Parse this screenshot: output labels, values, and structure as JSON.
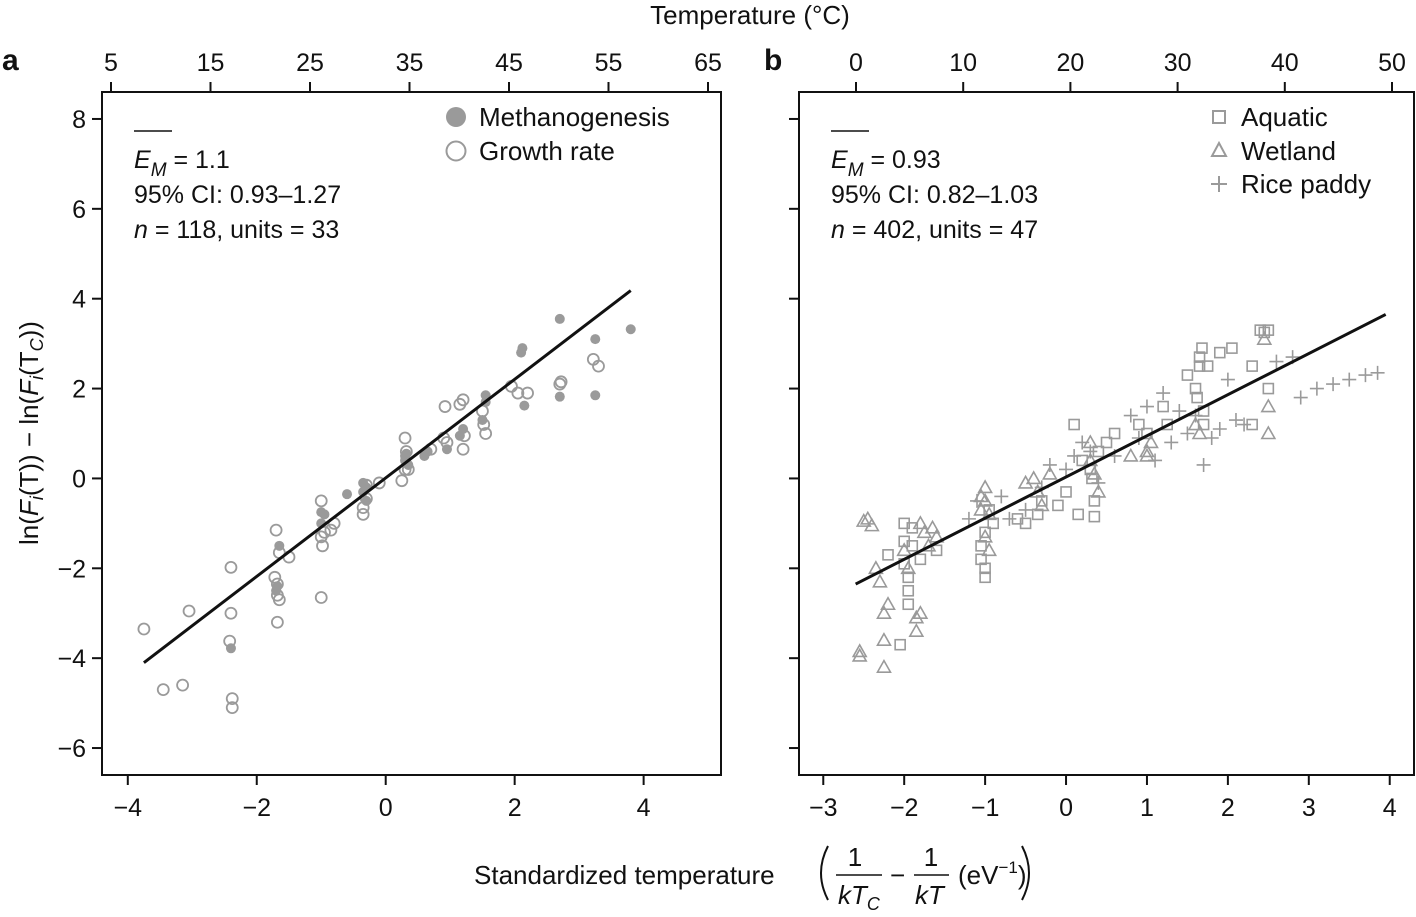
{
  "figure": {
    "top_axis_label": "Temperature (°C)",
    "y_axis": {
      "pre": "ln(",
      "F1": "F",
      "i1": "i",
      "T1": "(T)) − ln(",
      "F2": "F",
      "i2": "i",
      "T2": "(T",
      "c": "C",
      "close": "))"
    },
    "x_axis": {
      "prefix": "Standardized temperature",
      "one": "1",
      "kT": "kT",
      "C": "C",
      "minus": "−",
      "one2": "1",
      "kT2": "kT",
      "unit": "(eV",
      "exp": "−1",
      "unit_close": ")"
    }
  },
  "colors": {
    "grey": "#9a9a9a",
    "line": "#111111"
  },
  "chart_data": [
    {
      "type": "scatter",
      "panel_label": "a",
      "xlim": [
        -4.4,
        5.2
      ],
      "ylim": [
        -6.6,
        8.6
      ],
      "x_ticks": [
        -4,
        -2,
        0,
        2,
        4
      ],
      "x_tick_labels": [
        "−4",
        "−2",
        "0",
        "2",
        "4"
      ],
      "y_ticks": [
        -6,
        -4,
        -2,
        0,
        2,
        4,
        6,
        8
      ],
      "y_tick_labels": [
        "−6",
        "−4",
        "−2",
        "0",
        "2",
        "4",
        "6",
        "8"
      ],
      "top_ticks": [
        5,
        15,
        25,
        35,
        45,
        55,
        65
      ],
      "top_tick_labels": [
        "5",
        "15",
        "25",
        "35",
        "45",
        "55",
        "65"
      ],
      "stats": {
        "em_label": "E",
        "em_sub": "M",
        "em_value": " = 1.1",
        "ci": "95% CI: 0.93–1.27",
        "n_label": "n",
        "n_rest": " = 118, units = 33"
      },
      "fit": {
        "x": [
          -3.75,
          3.8
        ],
        "y": [
          -4.1,
          4.18
        ]
      },
      "legend": [
        "Methanogenesis",
        "Growth rate"
      ],
      "series": [
        {
          "name": "Methanogenesis",
          "marker": "filled-circle",
          "points": [
            [
              -2.4,
              -3.78
            ],
            [
              -1.7,
              -2.5
            ],
            [
              -1.68,
              -2.4
            ],
            [
              -1.65,
              -1.5
            ],
            [
              -1.0,
              -0.75
            ],
            [
              -1.0,
              -1.0
            ],
            [
              -0.95,
              -0.8
            ],
            [
              -0.6,
              -0.35
            ],
            [
              -0.35,
              -0.1
            ],
            [
              -0.35,
              -0.3
            ],
            [
              -0.3,
              -0.5
            ],
            [
              -0.3,
              -0.2
            ],
            [
              0.3,
              0.4
            ],
            [
              0.3,
              0.5
            ],
            [
              0.32,
              0.55
            ],
            [
              0.35,
              0.3
            ],
            [
              0.6,
              0.5
            ],
            [
              0.65,
              0.6
            ],
            [
              0.95,
              0.65
            ],
            [
              1.15,
              0.95
            ],
            [
              1.2,
              1.1
            ],
            [
              1.5,
              1.3
            ],
            [
              1.55,
              1.85
            ],
            [
              1.55,
              1.7
            ],
            [
              2.1,
              2.8
            ],
            [
              2.12,
              2.9
            ],
            [
              2.15,
              1.62
            ],
            [
              2.7,
              3.55
            ],
            [
              2.7,
              1.82
            ],
            [
              3.25,
              3.1
            ],
            [
              3.25,
              1.85
            ],
            [
              3.8,
              3.32
            ]
          ]
        },
        {
          "name": "Growth rate",
          "marker": "open-circle",
          "points": [
            [
              -3.75,
              -3.35
            ],
            [
              -3.45,
              -4.7
            ],
            [
              -3.15,
              -4.6
            ],
            [
              -3.05,
              -2.95
            ],
            [
              -2.4,
              -1.98
            ],
            [
              -2.4,
              -3.0
            ],
            [
              -2.42,
              -3.62
            ],
            [
              -2.38,
              -4.9
            ],
            [
              -2.38,
              -5.1
            ],
            [
              -1.7,
              -1.15
            ],
            [
              -1.72,
              -2.2
            ],
            [
              -1.68,
              -2.35
            ],
            [
              -1.68,
              -2.6
            ],
            [
              -1.65,
              -2.7
            ],
            [
              -1.68,
              -3.2
            ],
            [
              -1.65,
              -1.65
            ],
            [
              -1.5,
              -1.75
            ],
            [
              -1.0,
              -0.5
            ],
            [
              -1.0,
              -1.3
            ],
            [
              -0.98,
              -1.5
            ],
            [
              -0.95,
              -1.2
            ],
            [
              -1.0,
              -2.65
            ],
            [
              -0.85,
              -1.15
            ],
            [
              -0.8,
              -1.0
            ],
            [
              -0.35,
              -0.65
            ],
            [
              -0.35,
              -0.8
            ],
            [
              -0.3,
              -0.45
            ],
            [
              -0.3,
              -0.15
            ],
            [
              -0.1,
              -0.1
            ],
            [
              0.25,
              -0.05
            ],
            [
              0.3,
              0.2
            ],
            [
              0.3,
              0.9
            ],
            [
              0.32,
              0.6
            ],
            [
              0.35,
              0.2
            ],
            [
              0.7,
              0.65
            ],
            [
              0.9,
              0.9
            ],
            [
              0.92,
              1.6
            ],
            [
              0.95,
              0.8
            ],
            [
              1.15,
              1.65
            ],
            [
              1.2,
              1.75
            ],
            [
              1.2,
              0.65
            ],
            [
              1.22,
              0.95
            ],
            [
              1.5,
              1.5
            ],
            [
              1.52,
              1.2
            ],
            [
              1.55,
              1.0
            ],
            [
              1.95,
              2.05
            ],
            [
              2.05,
              1.9
            ],
            [
              2.2,
              1.9
            ],
            [
              2.7,
              2.1
            ],
            [
              2.72,
              2.15
            ],
            [
              3.22,
              2.65
            ],
            [
              3.3,
              2.5
            ]
          ]
        }
      ]
    },
    {
      "type": "scatter",
      "panel_label": "b",
      "xlim": [
        -3.3,
        4.3
      ],
      "ylim": [
        -6.6,
        8.6
      ],
      "x_ticks": [
        -3,
        -2,
        -1,
        0,
        1,
        2,
        3,
        4
      ],
      "x_tick_labels": [
        "−3",
        "−2",
        "−1",
        "0",
        "1",
        "2",
        "3",
        "4"
      ],
      "y_ticks": [
        -6,
        -4,
        -2,
        0,
        2,
        4,
        6,
        8
      ],
      "top_ticks": [
        0,
        10,
        20,
        30,
        40,
        50
      ],
      "top_tick_labels": [
        "0",
        "10",
        "20",
        "30",
        "40",
        "50"
      ],
      "stats": {
        "em_label": "E",
        "em_sub": "M",
        "em_value": " = 0.93",
        "ci": "95% CI: 0.82–1.03",
        "n_label": "n",
        "n_rest": " = 402, units = 47"
      },
      "fit": {
        "x": [
          -2.6,
          3.95
        ],
        "y": [
          -2.35,
          3.65
        ]
      },
      "legend": [
        "Aquatic",
        "Wetland",
        "Rice paddy"
      ],
      "series": [
        {
          "name": "Aquatic",
          "marker": "open-square",
          "points": [
            [
              -2.2,
              -1.7
            ],
            [
              -2.0,
              -1.0
            ],
            [
              -2.0,
              -1.4
            ],
            [
              -2.0,
              -1.9
            ],
            [
              -1.95,
              -2.2
            ],
            [
              -1.95,
              -2.5
            ],
            [
              -1.95,
              -2.8
            ],
            [
              -1.9,
              -1.1
            ],
            [
              -1.9,
              -1.5
            ],
            [
              -1.8,
              -1.8
            ],
            [
              -1.6,
              -1.6
            ],
            [
              -1.05,
              -1.5
            ],
            [
              -1.05,
              -1.8
            ],
            [
              -1.0,
              -2.2
            ],
            [
              -1.0,
              -2.0
            ],
            [
              -1.0,
              -1.2
            ],
            [
              -0.95,
              -0.7
            ],
            [
              -0.9,
              -1.0
            ],
            [
              -0.6,
              -0.9
            ],
            [
              -0.5,
              -1.0
            ],
            [
              -0.35,
              -0.8
            ],
            [
              -0.3,
              -0.5
            ],
            [
              -0.1,
              -0.6
            ],
            [
              0.0,
              -0.3
            ],
            [
              0.1,
              1.2
            ],
            [
              0.15,
              -0.8
            ],
            [
              0.2,
              0.4
            ],
            [
              0.3,
              0.2
            ],
            [
              0.32,
              0.0
            ],
            [
              0.35,
              -0.5
            ],
            [
              0.35,
              -0.85
            ],
            [
              0.4,
              0.6
            ],
            [
              0.5,
              0.8
            ],
            [
              0.6,
              1.0
            ],
            [
              0.9,
              1.2
            ],
            [
              1.0,
              1.0
            ],
            [
              1.2,
              1.6
            ],
            [
              1.25,
              1.2
            ],
            [
              1.5,
              2.3
            ],
            [
              1.6,
              2.0
            ],
            [
              1.62,
              1.8
            ],
            [
              1.65,
              2.5
            ],
            [
              1.65,
              2.7
            ],
            [
              1.68,
              2.9
            ],
            [
              1.7,
              1.5
            ],
            [
              1.7,
              1.2
            ],
            [
              1.75,
              2.5
            ],
            [
              1.9,
              2.8
            ],
            [
              2.05,
              2.9
            ],
            [
              2.3,
              2.5
            ],
            [
              2.3,
              1.2
            ],
            [
              2.4,
              3.3
            ],
            [
              2.45,
              3.25
            ],
            [
              2.5,
              3.3
            ],
            [
              2.5,
              2.0
            ],
            [
              -2.05,
              -3.7
            ]
          ]
        },
        {
          "name": "Wetland",
          "marker": "open-triangle",
          "points": [
            [
              -2.55,
              -3.85
            ],
            [
              -2.55,
              -3.95
            ],
            [
              -2.5,
              -0.95
            ],
            [
              -2.45,
              -0.9
            ],
            [
              -2.4,
              -1.05
            ],
            [
              -2.35,
              -2.0
            ],
            [
              -2.3,
              -2.3
            ],
            [
              -2.25,
              -3.0
            ],
            [
              -2.25,
              -3.6
            ],
            [
              -2.25,
              -4.2
            ],
            [
              -2.2,
              -2.8
            ],
            [
              -2.0,
              -1.6
            ],
            [
              -1.95,
              -2.0
            ],
            [
              -1.85,
              -3.1
            ],
            [
              -1.85,
              -3.4
            ],
            [
              -1.8,
              -3.0
            ],
            [
              -1.8,
              -1.0
            ],
            [
              -1.75,
              -1.2
            ],
            [
              -1.7,
              -1.5
            ],
            [
              -1.65,
              -1.1
            ],
            [
              -1.6,
              -1.3
            ],
            [
              -1.05,
              -0.4
            ],
            [
              -1.05,
              -0.7
            ],
            [
              -1.0,
              -0.2
            ],
            [
              -1.0,
              -0.5
            ],
            [
              -0.95,
              -0.8
            ],
            [
              -0.95,
              -1.6
            ],
            [
              -1.0,
              -1.3
            ],
            [
              -0.5,
              -0.1
            ],
            [
              -0.4,
              0.0
            ],
            [
              -0.35,
              -0.3
            ],
            [
              -0.3,
              -0.6
            ],
            [
              -0.2,
              0.1
            ],
            [
              0.3,
              0.8
            ],
            [
              0.3,
              0.4
            ],
            [
              0.35,
              0.1
            ],
            [
              0.4,
              -0.3
            ],
            [
              0.8,
              0.5
            ],
            [
              1.0,
              0.5
            ],
            [
              1.0,
              0.6
            ],
            [
              1.05,
              0.8
            ],
            [
              1.6,
              1.2
            ],
            [
              1.65,
              1.0
            ],
            [
              2.45,
              3.1
            ],
            [
              2.5,
              1.6
            ],
            [
              2.5,
              1.0
            ]
          ]
        },
        {
          "name": "Rice paddy",
          "marker": "plus",
          "points": [
            [
              -1.2,
              -0.9
            ],
            [
              -1.1,
              -0.5
            ],
            [
              -0.8,
              -0.4
            ],
            [
              -0.7,
              -0.9
            ],
            [
              -0.5,
              -0.7
            ],
            [
              -0.3,
              -0.2
            ],
            [
              -0.2,
              0.3
            ],
            [
              0.0,
              0.2
            ],
            [
              0.1,
              0.5
            ],
            [
              0.2,
              0.8
            ],
            [
              0.3,
              0.6
            ],
            [
              0.4,
              -0.1
            ],
            [
              0.6,
              0.5
            ],
            [
              0.8,
              1.4
            ],
            [
              0.9,
              0.9
            ],
            [
              1.0,
              1.6
            ],
            [
              1.1,
              0.4
            ],
            [
              1.2,
              1.9
            ],
            [
              1.3,
              0.8
            ],
            [
              1.4,
              1.5
            ],
            [
              1.5,
              1.0
            ],
            [
              1.6,
              1.4
            ],
            [
              1.7,
              0.3
            ],
            [
              1.8,
              0.9
            ],
            [
              1.9,
              1.1
            ],
            [
              2.0,
              2.2
            ],
            [
              2.1,
              1.3
            ],
            [
              2.2,
              1.2
            ],
            [
              2.6,
              2.6
            ],
            [
              2.8,
              2.7
            ],
            [
              2.9,
              1.8
            ],
            [
              3.1,
              2.0
            ],
            [
              3.3,
              2.1
            ],
            [
              3.5,
              2.2
            ],
            [
              3.7,
              2.3
            ],
            [
              3.85,
              2.35
            ]
          ]
        }
      ]
    }
  ]
}
